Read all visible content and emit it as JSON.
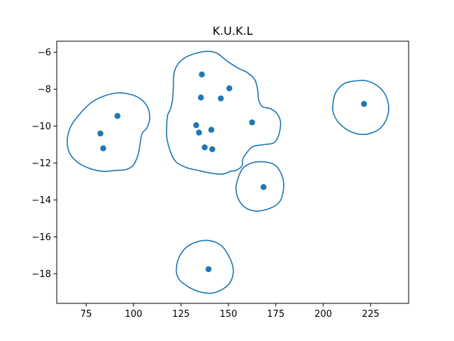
{
  "chart_data": {
    "type": "scatter",
    "title": "K.U.K.L",
    "xlabel": "",
    "ylabel": "",
    "xlim": [
      59.5,
      245
    ],
    "ylim": [
      -19.6,
      -5.4
    ],
    "xticks": [
      75,
      100,
      125,
      150,
      175,
      200,
      225
    ],
    "yticks": [
      -6,
      -8,
      -10,
      -12,
      -14,
      -16,
      -18
    ],
    "grid": false,
    "legend": "none",
    "colors": {
      "series": "#1f77b4",
      "axes": "#000000",
      "background": "#ffffff"
    },
    "points": [
      {
        "x": 82.5,
        "y": -10.4
      },
      {
        "x": 84.0,
        "y": -11.2
      },
      {
        "x": 91.5,
        "y": -9.45
      },
      {
        "x": 136.0,
        "y": -7.2
      },
      {
        "x": 150.5,
        "y": -7.95
      },
      {
        "x": 135.5,
        "y": -8.45
      },
      {
        "x": 146.0,
        "y": -8.5
      },
      {
        "x": 133.0,
        "y": -9.95
      },
      {
        "x": 134.5,
        "y": -10.35
      },
      {
        "x": 141.0,
        "y": -10.2
      },
      {
        "x": 162.5,
        "y": -9.8
      },
      {
        "x": 137.5,
        "y": -11.15
      },
      {
        "x": 141.5,
        "y": -11.25
      },
      {
        "x": 168.5,
        "y": -13.3
      },
      {
        "x": 221.5,
        "y": -8.8
      },
      {
        "x": 139.5,
        "y": -17.75
      }
    ],
    "contours": [
      [
        [
          65,
          -10.8
        ],
        [
          67,
          -10.0
        ],
        [
          72,
          -9.3
        ],
        [
          78,
          -8.7
        ],
        [
          85,
          -8.35
        ],
        [
          92,
          -8.2
        ],
        [
          99,
          -8.3
        ],
        [
          104,
          -8.55
        ],
        [
          107.5,
          -9.0
        ],
        [
          108.5,
          -9.6
        ],
        [
          107,
          -10.1
        ],
        [
          104.5,
          -10.4
        ],
        [
          103.5,
          -10.9
        ],
        [
          102.5,
          -11.5
        ],
        [
          100,
          -12.1
        ],
        [
          96,
          -12.35
        ],
        [
          90,
          -12.4
        ],
        [
          84,
          -12.45
        ],
        [
          77,
          -12.3
        ],
        [
          71,
          -12.0
        ],
        [
          66.5,
          -11.5
        ],
        [
          65,
          -10.8
        ]
      ],
      [
        [
          117.5,
          -9.9
        ],
        [
          118,
          -9.4
        ],
        [
          119.5,
          -9.05
        ],
        [
          120.5,
          -8.6
        ],
        [
          121,
          -7.9
        ],
        [
          121.2,
          -7.2
        ],
        [
          123,
          -6.7
        ],
        [
          127,
          -6.3
        ],
        [
          133,
          -6.05
        ],
        [
          139,
          -5.95
        ],
        [
          144,
          -6.05
        ],
        [
          149,
          -6.45
        ],
        [
          155,
          -6.85
        ],
        [
          160,
          -7.1
        ],
        [
          164,
          -7.5
        ],
        [
          165.5,
          -8.1
        ],
        [
          166,
          -8.6
        ],
        [
          168,
          -8.95
        ],
        [
          172,
          -9.05
        ],
        [
          175.5,
          -9.3
        ],
        [
          177.5,
          -9.8
        ],
        [
          176.5,
          -10.5
        ],
        [
          174,
          -10.9
        ],
        [
          169,
          -11.0
        ],
        [
          163,
          -11.1
        ],
        [
          160,
          -11.4
        ],
        [
          157.5,
          -11.8
        ],
        [
          157.2,
          -12.15
        ],
        [
          154,
          -12.4
        ],
        [
          151,
          -12.45
        ],
        [
          147,
          -12.6
        ],
        [
          141,
          -12.55
        ],
        [
          134,
          -12.4
        ],
        [
          128,
          -12.25
        ],
        [
          122.5,
          -11.95
        ],
        [
          119.5,
          -11.4
        ],
        [
          117.5,
          -10.6
        ],
        [
          117.5,
          -9.9
        ]
      ],
      [
        [
          157.5,
          -12.3
        ],
        [
          155.5,
          -12.7
        ],
        [
          154,
          -13.35
        ],
        [
          155.5,
          -14.0
        ],
        [
          159.5,
          -14.45
        ],
        [
          165,
          -14.6
        ],
        [
          172,
          -14.45
        ],
        [
          177,
          -14.1
        ],
        [
          179,
          -13.45
        ],
        [
          178.5,
          -12.75
        ],
        [
          175,
          -12.15
        ],
        [
          170,
          -11.95
        ],
        [
          164,
          -11.95
        ],
        [
          160,
          -12.1
        ],
        [
          157.5,
          -12.3
        ]
      ],
      [
        [
          205,
          -8.9
        ],
        [
          206.5,
          -8.2
        ],
        [
          211,
          -7.7
        ],
        [
          217,
          -7.55
        ],
        [
          223,
          -7.55
        ],
        [
          229,
          -7.85
        ],
        [
          233,
          -8.35
        ],
        [
          234.5,
          -9.05
        ],
        [
          233,
          -9.7
        ],
        [
          229,
          -10.2
        ],
        [
          222,
          -10.45
        ],
        [
          214.5,
          -10.3
        ],
        [
          208.5,
          -9.85
        ],
        [
          205.5,
          -9.35
        ],
        [
          205,
          -8.9
        ]
      ],
      [
        [
          122.5,
          -17.8
        ],
        [
          124,
          -17.1
        ],
        [
          128,
          -16.55
        ],
        [
          134,
          -16.25
        ],
        [
          140,
          -16.2
        ],
        [
          146,
          -16.45
        ],
        [
          150,
          -17.0
        ],
        [
          152.5,
          -17.7
        ],
        [
          151.5,
          -18.35
        ],
        [
          147.5,
          -18.8
        ],
        [
          141,
          -19.05
        ],
        [
          134,
          -18.95
        ],
        [
          128,
          -18.65
        ],
        [
          124,
          -18.3
        ],
        [
          122.5,
          -17.8
        ]
      ]
    ]
  }
}
